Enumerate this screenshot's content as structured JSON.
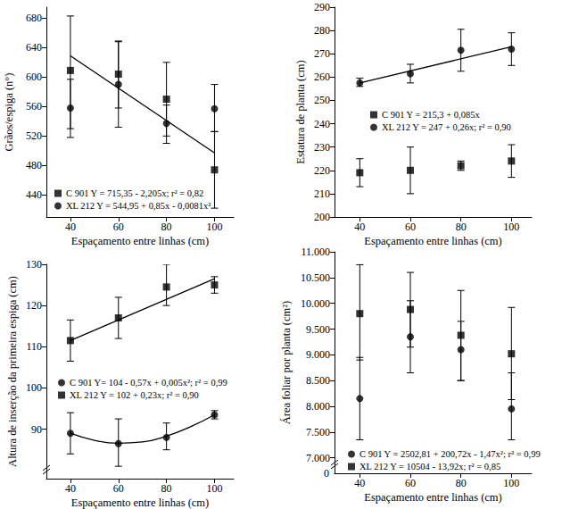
{
  "chart_data": [
    {
      "type": "scatter",
      "x_label": "Espaçamento entre linhas (cm)",
      "y_label": "Grãos/espiga (n°)",
      "xlim": [
        30,
        108
      ],
      "xticks": [
        40,
        60,
        80,
        100
      ],
      "ylim": [
        410,
        695
      ],
      "yticks": [
        440,
        480,
        520,
        560,
        600,
        640,
        680
      ],
      "x": [
        40,
        60,
        80,
        100
      ],
      "series": [
        {
          "name": "C 901 Y = 715,35 - 2,205x; r² = 0,82",
          "marker": "square",
          "color": "#000000",
          "values": [
            609,
            604,
            570,
            474
          ],
          "error_low": [
            530,
            558,
            520,
            422
          ],
          "error_high": [
            683,
            649,
            620,
            526
          ],
          "fit_x": [
            40,
            100
          ],
          "fit_values": [
            629,
            497
          ]
        },
        {
          "name": "XL 212 Y = 544,95 + 0,85x - 0,0081x²",
          "marker": "circle",
          "color": "#000000",
          "values": [
            558,
            590,
            537,
            557
          ],
          "error_low": [
            518,
            532,
            510,
            526
          ],
          "error_high": [
            597,
            648,
            562,
            590
          ]
        }
      ]
    },
    {
      "type": "scatter",
      "x_label": "Espaçamento entre linhas (cm)",
      "y_label": "Estatura de planta (cm)",
      "xlim": [
        30,
        108
      ],
      "xticks": [
        40,
        60,
        80,
        100
      ],
      "ylim": [
        200,
        290
      ],
      "yticks": [
        200,
        210,
        220,
        230,
        240,
        250,
        260,
        270,
        280,
        290
      ],
      "x": [
        40,
        60,
        80,
        100
      ],
      "series": [
        {
          "name": "C 901 Y = 215,3 + 0,085x",
          "marker": "square",
          "color": "#000000",
          "values": [
            219,
            220,
            222,
            224
          ],
          "error_low": [
            213,
            210,
            220,
            217
          ],
          "error_high": [
            225,
            230,
            224,
            231
          ]
        },
        {
          "name": "XL 212 Y = 247 + 0,26x; r² = 0,90",
          "marker": "circle",
          "color": "#000000",
          "values": [
            257.5,
            261.5,
            271.5,
            272
          ],
          "error_low": [
            256,
            257.5,
            262.5,
            265
          ],
          "error_high": [
            259.5,
            265.5,
            280.5,
            279
          ],
          "fit_x": [
            40,
            100
          ],
          "fit_values": [
            257.5,
            273
          ]
        }
      ]
    },
    {
      "type": "scatter",
      "x_label": "Espaçamento entre linhas (cm)",
      "y_label": "Altura de inserção da primeira espiga (cm)",
      "xlim": [
        30,
        108
      ],
      "xticks": [
        40,
        60,
        80,
        100
      ],
      "ylim": [
        78,
        130
      ],
      "yticks": [
        90,
        100,
        110,
        120,
        130
      ],
      "x": [
        40,
        60,
        80,
        100
      ],
      "series": [
        {
          "name": "C 901 Y= 104 - 0,57x + 0,005x²; r² = 0,99",
          "marker": "circle",
          "color": "#000000",
          "values": [
            89,
            86.5,
            88,
            93.5
          ],
          "error_low": [
            84,
            81,
            85,
            92.5
          ],
          "error_high": [
            94,
            92.5,
            91.5,
            94.5
          ],
          "fit_x": [
            40,
            50,
            60,
            70,
            80,
            90,
            100
          ],
          "fit_values": [
            89,
            87.3,
            86.6,
            86.9,
            88.3,
            90.6,
            93.5
          ]
        },
        {
          "name": "XL 212 Y = 102 + 0,23x; r² = 0,90",
          "marker": "square",
          "color": "#000000",
          "values": [
            111.5,
            117,
            124.5,
            125
          ],
          "error_low": [
            106.5,
            112,
            120,
            123
          ],
          "error_high": [
            116.5,
            122,
            130,
            127
          ],
          "fit_x": [
            40,
            100
          ],
          "fit_values": [
            111.5,
            126.5
          ]
        }
      ]
    },
    {
      "type": "scatter",
      "x_label": "Espaçamento entre linhas (cm)",
      "y_label": "Área foliar por planta (cm²)",
      "xlim": [
        30,
        108
      ],
      "xticks": [
        40,
        60,
        80,
        100
      ],
      "ylim": [
        6700,
        11000
      ],
      "yticks": [
        {
          "value": 7000,
          "label": "7.000"
        },
        {
          "value": 7500,
          "label": "7.500"
        },
        {
          "value": 8000,
          "label": "8.000"
        },
        {
          "value": 8500,
          "label": "8.500"
        },
        {
          "value": 9000,
          "label": "9.000"
        },
        {
          "value": 9500,
          "label": "9.500"
        },
        {
          "value": 10000,
          "label": "10.000"
        },
        {
          "value": 10500,
          "label": "10.500"
        },
        {
          "value": 11000,
          "label": "11.000"
        }
      ],
      "annotations": [
        "0"
      ],
      "x": [
        40,
        60,
        80,
        100
      ],
      "series": [
        {
          "name": "C 901 Y = 2502,81 + 200,72x - 1,47x²; r² = 0,99",
          "marker": "circle",
          "color": "#000000",
          "values": [
            8150,
            9350,
            9100,
            7950
          ],
          "error_low": [
            7350,
            8650,
            8500,
            7350
          ],
          "error_high": [
            8950,
            10050,
            9650,
            8650
          ]
        },
        {
          "name": "XL 212 Y = 10504 - 13,92x; r² = 0,85",
          "marker": "square",
          "color": "#000000",
          "values": [
            9800,
            9880,
            9380,
            9020
          ],
          "error_low": [
            8900,
            9150,
            8500,
            8130
          ],
          "error_high": [
            10750,
            10600,
            10250,
            9920
          ]
        }
      ]
    }
  ]
}
